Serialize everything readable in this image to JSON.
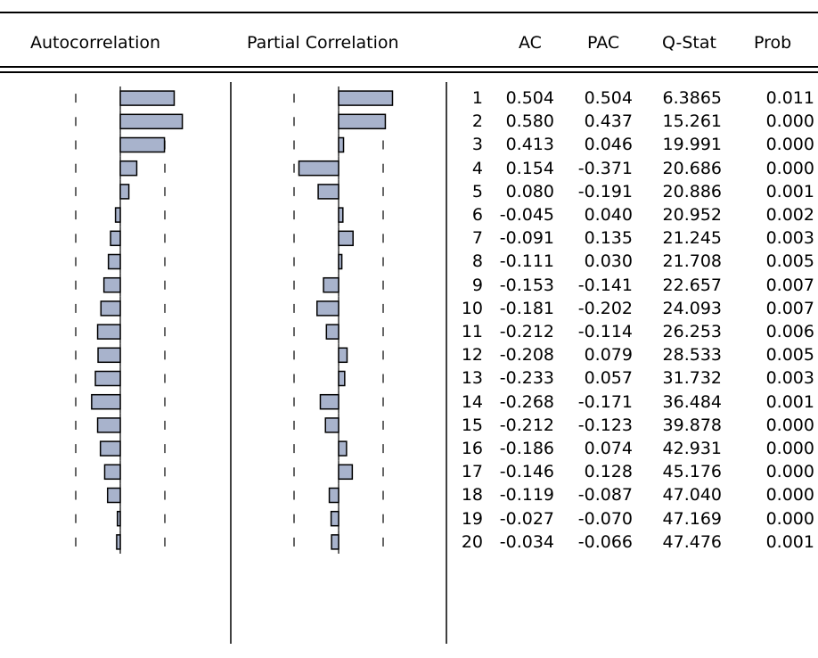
{
  "headers": {
    "autocorrelation": "Autocorrelation",
    "partial_correlation": "Partial Correlation",
    "ac": "AC",
    "pac": "PAC",
    "qstat": "Q-Stat",
    "prob": "Prob"
  },
  "bar_color": "#a8b3cc",
  "chart_data": {
    "type": "table",
    "columns": [
      "",
      "AC",
      "PAC",
      "Q-Stat",
      "Prob"
    ],
    "rows": [
      {
        "lag": "1",
        "ac": "0.504",
        "pac": "0.504",
        "q": "6.3865",
        "prob": "0.011"
      },
      {
        "lag": "2",
        "ac": "0.580",
        "pac": "0.437",
        "q": "15.261",
        "prob": "0.000"
      },
      {
        "lag": "3",
        "ac": "0.413",
        "pac": "0.046",
        "q": "19.991",
        "prob": "0.000"
      },
      {
        "lag": "4",
        "ac": "0.154",
        "pac": "-0.371",
        "q": "20.686",
        "prob": "0.000"
      },
      {
        "lag": "5",
        "ac": "0.080",
        "pac": "-0.191",
        "q": "20.886",
        "prob": "0.001"
      },
      {
        "lag": "6",
        "ac": "-0.045",
        "pac": "0.040",
        "q": "20.952",
        "prob": "0.002"
      },
      {
        "lag": "7",
        "ac": "-0.091",
        "pac": "0.135",
        "q": "21.245",
        "prob": "0.003"
      },
      {
        "lag": "8",
        "ac": "-0.111",
        "pac": "0.030",
        "q": "21.708",
        "prob": "0.005"
      },
      {
        "lag": "9",
        "ac": "-0.153",
        "pac": "-0.141",
        "q": "22.657",
        "prob": "0.007"
      },
      {
        "lag": "10",
        "ac": "-0.181",
        "pac": "-0.202",
        "q": "24.093",
        "prob": "0.007"
      },
      {
        "lag": "11",
        "ac": "-0.212",
        "pac": "-0.114",
        "q": "26.253",
        "prob": "0.006"
      },
      {
        "lag": "12",
        "ac": "-0.208",
        "pac": "0.079",
        "q": "28.533",
        "prob": "0.005"
      },
      {
        "lag": "13",
        "ac": "-0.233",
        "pac": "0.057",
        "q": "31.732",
        "prob": "0.003"
      },
      {
        "lag": "14",
        "ac": "-0.268",
        "pac": "-0.171",
        "q": "36.484",
        "prob": "0.001"
      },
      {
        "lag": "15",
        "ac": "-0.212",
        "pac": "-0.123",
        "q": "39.878",
        "prob": "0.000"
      },
      {
        "lag": "16",
        "ac": "-0.186",
        "pac": "0.074",
        "q": "42.931",
        "prob": "0.000"
      },
      {
        "lag": "17",
        "ac": "-0.146",
        "pac": "0.128",
        "q": "45.176",
        "prob": "0.000"
      },
      {
        "lag": "18",
        "ac": "-0.119",
        "pac": "-0.087",
        "q": "47.040",
        "prob": "0.000"
      },
      {
        "lag": "19",
        "ac": "-0.027",
        "pac": "-0.070",
        "q": "47.169",
        "prob": "0.000"
      },
      {
        "lag": "20",
        "ac": "-0.034",
        "pac": "-0.066",
        "q": "47.476",
        "prob": "0.001"
      }
    ]
  }
}
